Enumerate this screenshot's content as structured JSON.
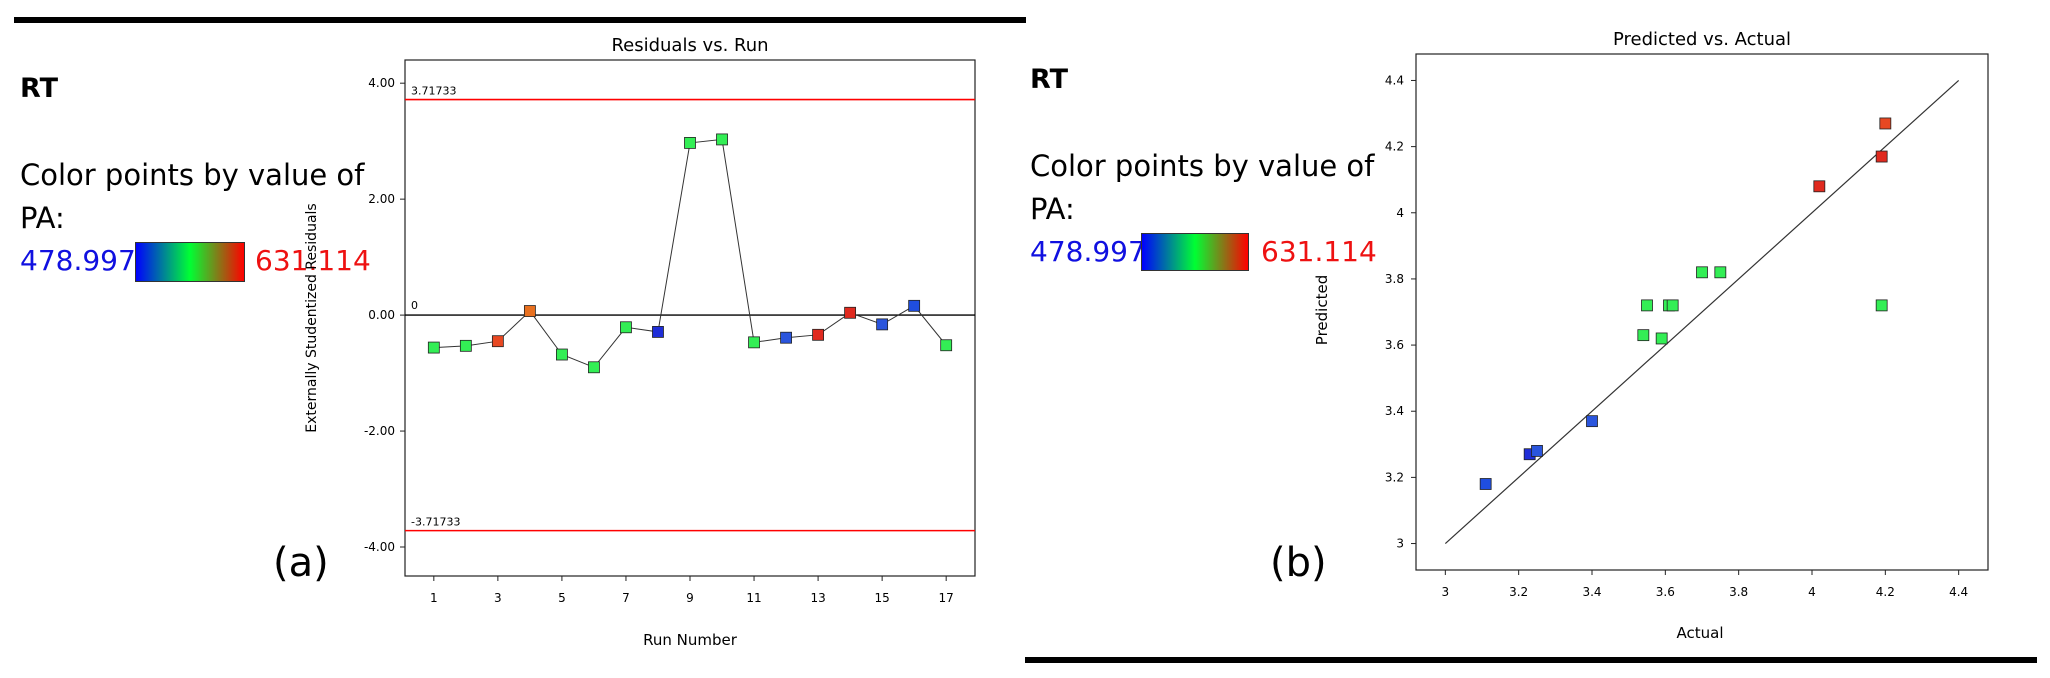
{
  "panel_a": {
    "response": "RT",
    "color_label": "Color points by value of",
    "color_var": "PA:",
    "scale_min": "478.997",
    "scale_max": "631.114",
    "tag": "(a)"
  },
  "panel_b": {
    "response": "RT",
    "color_label": "Color points by value of",
    "color_var": "PA:",
    "scale_min": "478.997",
    "scale_max": "631.114",
    "tag": "(b)"
  },
  "colors": {
    "min_color": "#0000ff",
    "max_color": "#ff0000",
    "mid_color": "#00ff33",
    "limit_line": "#ff0000"
  },
  "chart_data": [
    {
      "type": "line",
      "title": "Residuals vs. Run",
      "xlabel": "Run Number",
      "ylabel": "Externally Studentized Residuals",
      "xlim": [
        0.1,
        17.9
      ],
      "ylim": [
        -4.5,
        4.4
      ],
      "xticks": [
        1,
        3,
        5,
        7,
        9,
        11,
        13,
        15,
        17
      ],
      "xtick_labels": [
        "1",
        "3",
        "5",
        "7",
        "9",
        "11",
        "13",
        "15",
        "17"
      ],
      "yticks": [
        4,
        2,
        0,
        -2,
        -4
      ],
      "ytick_labels": [
        "4.00",
        "2.00",
        "0.00",
        "-2.00",
        "-4.00"
      ],
      "limit_lines": [
        {
          "value": 3.71733,
          "label": "3.71733"
        },
        {
          "value": -3.71733,
          "label": "-3.71733"
        }
      ],
      "zero_line": {
        "value": 0,
        "label": "0"
      },
      "x": [
        1,
        2,
        3,
        4,
        5,
        6,
        7,
        8,
        9,
        10,
        11,
        12,
        13,
        14,
        15,
        16,
        17
      ],
      "y": [
        -0.56,
        -0.53,
        -0.45,
        0.07,
        -0.68,
        -0.9,
        -0.21,
        -0.29,
        2.97,
        3.03,
        -0.47,
        -0.39,
        -0.34,
        0.04,
        -0.16,
        0.16,
        -0.52
      ],
      "point_colors": [
        "#33ee55",
        "#33ee55",
        "#e84822",
        "#e8701f",
        "#33ee55",
        "#33ee55",
        "#33ee55",
        "#1f2ed8",
        "#33ee55",
        "#33ee55",
        "#33ee55",
        "#2a55dd",
        "#e02a1f",
        "#e02a1f",
        "#2a55dd",
        "#1f4ee0",
        "#33ee55"
      ],
      "grid": false
    },
    {
      "type": "scatter",
      "title": "Predicted vs. Actual",
      "xlabel": "Actual",
      "ylabel": "Predicted",
      "xlim": [
        2.92,
        4.48
      ],
      "ylim": [
        2.92,
        4.48
      ],
      "xticks": [
        3,
        3.2,
        3.4,
        3.6,
        3.8,
        4,
        4.2,
        4.4
      ],
      "xtick_labels": [
        "3",
        "3.2",
        "3.4",
        "3.6",
        "3.8",
        "4",
        "4.2",
        "4.4"
      ],
      "yticks": [
        3,
        3.2,
        3.4,
        3.6,
        3.8,
        4,
        4.2,
        4.4
      ],
      "ytick_labels": [
        "3",
        "3.2",
        "3.4",
        "3.6",
        "3.8",
        "4",
        "4.2",
        "4.4"
      ],
      "reference_line": {
        "from": [
          3,
          3
        ],
        "to": [
          4.4,
          4.4
        ]
      },
      "points": [
        {
          "x": 3.11,
          "y": 3.18,
          "color": "#1f4ee0"
        },
        {
          "x": 3.23,
          "y": 3.27,
          "color": "#1f2ed8"
        },
        {
          "x": 3.25,
          "y": 3.28,
          "color": "#2a55dd"
        },
        {
          "x": 3.4,
          "y": 3.37,
          "color": "#2a55dd"
        },
        {
          "x": 3.54,
          "y": 3.63,
          "color": "#33ee55"
        },
        {
          "x": 3.55,
          "y": 3.72,
          "color": "#33ee55"
        },
        {
          "x": 3.59,
          "y": 3.62,
          "color": "#33ee55"
        },
        {
          "x": 3.61,
          "y": 3.72,
          "color": "#33ee55"
        },
        {
          "x": 3.62,
          "y": 3.72,
          "color": "#33ee55"
        },
        {
          "x": 3.7,
          "y": 3.82,
          "color": "#33ee55"
        },
        {
          "x": 3.75,
          "y": 3.82,
          "color": "#33ee55"
        },
        {
          "x": 4.02,
          "y": 4.08,
          "color": "#e02a1f"
        },
        {
          "x": 4.19,
          "y": 4.17,
          "color": "#e02a1f"
        },
        {
          "x": 4.19,
          "y": 3.72,
          "color": "#33ee55"
        },
        {
          "x": 4.2,
          "y": 4.27,
          "color": "#e84822"
        }
      ],
      "grid": false
    }
  ]
}
